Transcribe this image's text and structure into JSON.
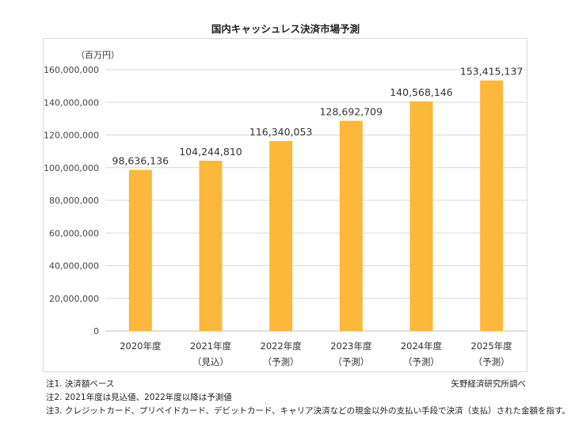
{
  "chart_data": {
    "type": "bar",
    "title": "国内キャッシュレス決済市場予測",
    "unit_label": "（百万円）",
    "categories": [
      "2020年度",
      "2021年度",
      "2022年度",
      "2023年度",
      "2024年度",
      "2025年度"
    ],
    "category_sublabels": [
      "",
      "（見込）",
      "（予測）",
      "（予測）",
      "（予測）",
      "（予測）"
    ],
    "values": [
      98636136,
      104244810,
      116340053,
      128692709,
      140568146,
      153415137
    ],
    "value_labels": [
      "98,636,136",
      "104,244,810",
      "116,340,053",
      "128,692,709",
      "140,568,146",
      "153,415,137"
    ],
    "ylim": [
      0,
      160000000
    ],
    "yticks": [
      0,
      20000000,
      40000000,
      60000000,
      80000000,
      100000000,
      120000000,
      140000000,
      160000000
    ],
    "ytick_labels": [
      "0",
      "20,000,000",
      "40,000,000",
      "60,000,000",
      "80,000,000",
      "100,000,000",
      "120,000,000",
      "140,000,000",
      "160,000,000"
    ],
    "grid": true,
    "bar_color": "#FBB83A",
    "grid_color": "#D9D9D9"
  },
  "notes": [
    "注1.  決済額ベース",
    "注2.  2021年度は見込値、2022年度以降は予測値",
    "注3.  クレジットカード、プリペイドカード、デビットカード、キャリア決済などの現金以外の支払い手段で決済（支払）された金額を指す。"
  ],
  "source": "矢野経済研究所調べ"
}
